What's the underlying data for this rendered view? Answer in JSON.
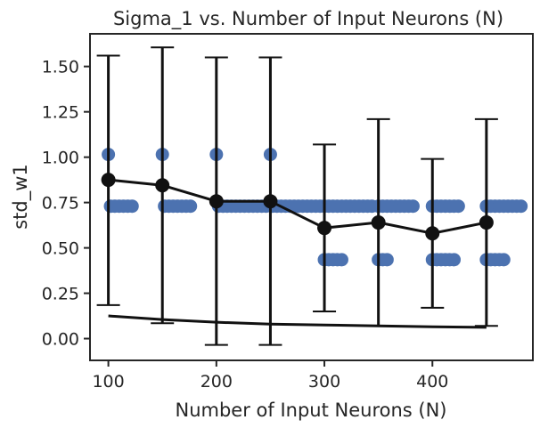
{
  "chart_data": {
    "type": "scatter",
    "title": "Sigma_1 vs. Number of Input Neurons (N)",
    "xlabel": "Number of Input Neurons (N)",
    "ylabel": "std_w1",
    "xlim": [
      83,
      493
    ],
    "ylim": [
      -0.12,
      1.68
    ],
    "xticks": [
      100,
      200,
      300,
      400
    ],
    "xtick_labels": [
      "100",
      "200",
      "300",
      "400"
    ],
    "yticks": [
      0.0,
      0.25,
      0.5,
      0.75,
      1.0,
      1.25,
      1.5
    ],
    "ytick_labels": [
      "0.00",
      "0.25",
      "0.50",
      "0.75",
      "1.00",
      "1.25",
      "1.50"
    ],
    "grid": false,
    "legend": "none",
    "scatter_points": {
      "color": "#4c72b0",
      "points": [
        [
          100,
          1.015
        ],
        [
          102,
          0.73
        ],
        [
          106,
          0.73
        ],
        [
          110,
          0.73
        ],
        [
          114,
          0.73
        ],
        [
          118,
          0.73
        ],
        [
          122,
          0.73
        ],
        [
          150,
          1.015
        ],
        [
          152,
          0.73
        ],
        [
          156,
          0.73
        ],
        [
          160,
          0.73
        ],
        [
          164,
          0.73
        ],
        [
          168,
          0.73
        ],
        [
          172,
          0.73
        ],
        [
          176,
          0.73
        ],
        [
          200,
          1.015
        ],
        [
          202,
          0.73
        ],
        [
          206,
          0.73
        ],
        [
          210,
          0.73
        ],
        [
          214,
          0.73
        ],
        [
          218,
          0.73
        ],
        [
          222,
          0.73
        ],
        [
          226,
          0.73
        ],
        [
          230,
          0.73
        ],
        [
          234,
          0.73
        ],
        [
          238,
          0.73
        ],
        [
          242,
          0.73
        ],
        [
          246,
          0.73
        ],
        [
          250,
          1.015
        ],
        [
          252,
          0.73
        ],
        [
          256,
          0.73
        ],
        [
          260,
          0.73
        ],
        [
          264,
          0.73
        ],
        [
          268,
          0.73
        ],
        [
          272,
          0.73
        ],
        [
          276,
          0.73
        ],
        [
          280,
          0.73
        ],
        [
          284,
          0.73
        ],
        [
          288,
          0.73
        ],
        [
          292,
          0.73
        ],
        [
          296,
          0.73
        ],
        [
          300,
          0.73
        ],
        [
          304,
          0.73
        ],
        [
          308,
          0.73
        ],
        [
          312,
          0.73
        ],
        [
          316,
          0.73
        ],
        [
          320,
          0.73
        ],
        [
          324,
          0.73
        ],
        [
          328,
          0.73
        ],
        [
          332,
          0.73
        ],
        [
          336,
          0.73
        ],
        [
          340,
          0.73
        ],
        [
          344,
          0.73
        ],
        [
          300,
          0.435
        ],
        [
          304,
          0.435
        ],
        [
          308,
          0.435
        ],
        [
          312,
          0.435
        ],
        [
          316,
          0.435
        ],
        [
          350,
          0.73
        ],
        [
          354,
          0.73
        ],
        [
          358,
          0.73
        ],
        [
          362,
          0.73
        ],
        [
          366,
          0.73
        ],
        [
          370,
          0.73
        ],
        [
          374,
          0.73
        ],
        [
          378,
          0.73
        ],
        [
          382,
          0.73
        ],
        [
          350,
          0.435
        ],
        [
          354,
          0.435
        ],
        [
          358,
          0.435
        ],
        [
          400,
          0.73
        ],
        [
          404,
          0.73
        ],
        [
          408,
          0.73
        ],
        [
          412,
          0.73
        ],
        [
          416,
          0.73
        ],
        [
          420,
          0.73
        ],
        [
          424,
          0.73
        ],
        [
          400,
          0.435
        ],
        [
          404,
          0.435
        ],
        [
          408,
          0.435
        ],
        [
          412,
          0.435
        ],
        [
          416,
          0.435
        ],
        [
          420,
          0.435
        ],
        [
          450,
          0.73
        ],
        [
          454,
          0.73
        ],
        [
          458,
          0.73
        ],
        [
          462,
          0.73
        ],
        [
          466,
          0.73
        ],
        [
          470,
          0.73
        ],
        [
          474,
          0.73
        ],
        [
          478,
          0.73
        ],
        [
          482,
          0.73
        ],
        [
          450,
          0.435
        ],
        [
          454,
          0.435
        ],
        [
          458,
          0.435
        ],
        [
          462,
          0.435
        ],
        [
          466,
          0.435
        ]
      ]
    },
    "mean_line": {
      "color": "#111111",
      "x": [
        100,
        150,
        200,
        250,
        300,
        350,
        400,
        450
      ],
      "y": [
        0.875,
        0.845,
        0.757,
        0.757,
        0.61,
        0.64,
        0.58,
        0.64
      ]
    },
    "error_bars": {
      "color": "#111111",
      "x": [
        100,
        150,
        200,
        250,
        300,
        350,
        400,
        450
      ],
      "lower": [
        0.185,
        0.085,
        -0.035,
        -0.035,
        0.15,
        0.07,
        0.17,
        0.07
      ],
      "upper": [
        1.56,
        1.605,
        1.55,
        1.55,
        1.07,
        1.21,
        0.99,
        1.21
      ]
    },
    "lower_curve": {
      "color": "#111111",
      "x": [
        100,
        150,
        200,
        250,
        300,
        350,
        400,
        450
      ],
      "y": [
        0.125,
        0.105,
        0.09,
        0.08,
        0.075,
        0.07,
        0.065,
        0.062
      ]
    }
  }
}
